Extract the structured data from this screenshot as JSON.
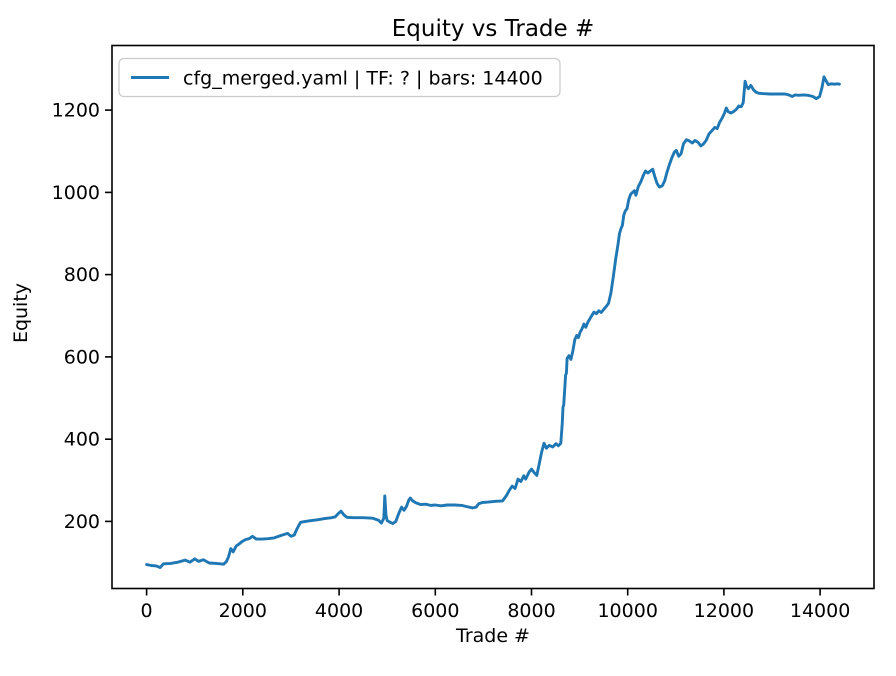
{
  "figure": {
    "background": "#ffffff",
    "text_color": "#000000",
    "legend_border_color": "#cccccc"
  },
  "chart_data": {
    "type": "line",
    "title": "Equity vs Trade #",
    "xlabel": "Trade #",
    "ylabel": "Equity",
    "grid": false,
    "xlim": [
      -720,
      15120
    ],
    "ylim": [
      37,
      1357
    ],
    "x_ticks": [
      0,
      2000,
      4000,
      6000,
      8000,
      10000,
      12000,
      14000
    ],
    "y_ticks": [
      200,
      400,
      600,
      800,
      1000,
      1200
    ],
    "legend": {
      "position": "upper left",
      "entries": [
        {
          "label": "cfg_merged.yaml | TF: ? | bars: 14400",
          "color": "#1f77b4"
        }
      ]
    },
    "series": [
      {
        "name": "cfg_merged.yaml | TF: ? | bars: 14400",
        "color": "#1f77b4",
        "points": [
          [
            0,
            95
          ],
          [
            100,
            93
          ],
          [
            200,
            92
          ],
          [
            280,
            88
          ],
          [
            350,
            97
          ],
          [
            500,
            98
          ],
          [
            650,
            101
          ],
          [
            800,
            106
          ],
          [
            900,
            101
          ],
          [
            1000,
            109
          ],
          [
            1080,
            103
          ],
          [
            1180,
            107
          ],
          [
            1300,
            99
          ],
          [
            1450,
            98
          ],
          [
            1600,
            96
          ],
          [
            1660,
            103
          ],
          [
            1700,
            113
          ],
          [
            1750,
            134
          ],
          [
            1800,
            126
          ],
          [
            1860,
            140
          ],
          [
            1920,
            145
          ],
          [
            1980,
            151
          ],
          [
            2060,
            156
          ],
          [
            2130,
            158
          ],
          [
            2200,
            164
          ],
          [
            2280,
            157
          ],
          [
            2400,
            157
          ],
          [
            2520,
            158
          ],
          [
            2650,
            160
          ],
          [
            2800,
            166
          ],
          [
            2930,
            171
          ],
          [
            3000,
            164
          ],
          [
            3070,
            167
          ],
          [
            3110,
            178
          ],
          [
            3160,
            190
          ],
          [
            3200,
            198
          ],
          [
            3300,
            200
          ],
          [
            3420,
            202
          ],
          [
            3550,
            204
          ],
          [
            3700,
            207
          ],
          [
            3850,
            209
          ],
          [
            3920,
            211
          ],
          [
            3990,
            220
          ],
          [
            4040,
            225
          ],
          [
            4100,
            216
          ],
          [
            4160,
            210
          ],
          [
            4300,
            209
          ],
          [
            4500,
            209
          ],
          [
            4700,
            208
          ],
          [
            4820,
            203
          ],
          [
            4880,
            196
          ],
          [
            4930,
            208
          ],
          [
            4950,
            262
          ],
          [
            4975,
            215
          ],
          [
            5000,
            202
          ],
          [
            5060,
            198
          ],
          [
            5120,
            195
          ],
          [
            5180,
            200
          ],
          [
            5250,
            222
          ],
          [
            5300,
            235
          ],
          [
            5350,
            227
          ],
          [
            5400,
            236
          ],
          [
            5450,
            252
          ],
          [
            5480,
            257
          ],
          [
            5530,
            250
          ],
          [
            5600,
            245
          ],
          [
            5700,
            241
          ],
          [
            5800,
            242
          ],
          [
            5900,
            239
          ],
          [
            6000,
            240
          ],
          [
            6120,
            238
          ],
          [
            6250,
            240
          ],
          [
            6400,
            240
          ],
          [
            6550,
            239
          ],
          [
            6700,
            235
          ],
          [
            6780,
            233
          ],
          [
            6850,
            235
          ],
          [
            6900,
            243
          ],
          [
            6980,
            246
          ],
          [
            7100,
            247
          ],
          [
            7250,
            249
          ],
          [
            7400,
            250
          ],
          [
            7480,
            263
          ],
          [
            7540,
            276
          ],
          [
            7600,
            286
          ],
          [
            7660,
            280
          ],
          [
            7720,
            303
          ],
          [
            7780,
            297
          ],
          [
            7840,
            311
          ],
          [
            7880,
            303
          ],
          [
            7950,
            320
          ],
          [
            8000,
            327
          ],
          [
            8060,
            318
          ],
          [
            8110,
            312
          ],
          [
            8160,
            340
          ],
          [
            8210,
            368
          ],
          [
            8260,
            390
          ],
          [
            8310,
            378
          ],
          [
            8370,
            385
          ],
          [
            8440,
            381
          ],
          [
            8510,
            389
          ],
          [
            8560,
            384
          ],
          [
            8610,
            390
          ],
          [
            8640,
            440
          ],
          [
            8655,
            478
          ],
          [
            8670,
            483
          ],
          [
            8690,
            520
          ],
          [
            8710,
            556
          ],
          [
            8725,
            560
          ],
          [
            8740,
            596
          ],
          [
            8780,
            603
          ],
          [
            8820,
            594
          ],
          [
            8860,
            615
          ],
          [
            8900,
            642
          ],
          [
            8940,
            652
          ],
          [
            8975,
            647
          ],
          [
            9010,
            660
          ],
          [
            9050,
            668
          ],
          [
            9090,
            680
          ],
          [
            9130,
            672
          ],
          [
            9170,
            684
          ],
          [
            9210,
            692
          ],
          [
            9250,
            700
          ],
          [
            9300,
            709
          ],
          [
            9350,
            705
          ],
          [
            9400,
            712
          ],
          [
            9450,
            708
          ],
          [
            9500,
            715
          ],
          [
            9550,
            722
          ],
          [
            9600,
            730
          ],
          [
            9650,
            755
          ],
          [
            9700,
            795
          ],
          [
            9750,
            838
          ],
          [
            9800,
            875
          ],
          [
            9830,
            900
          ],
          [
            9860,
            912
          ],
          [
            9890,
            920
          ],
          [
            9920,
            945
          ],
          [
            9950,
            955
          ],
          [
            9985,
            960
          ],
          [
            10020,
            982
          ],
          [
            10060,
            995
          ],
          [
            10100,
            1000
          ],
          [
            10140,
            1004
          ],
          [
            10170,
            993
          ],
          [
            10220,
            1014
          ],
          [
            10270,
            1025
          ],
          [
            10320,
            1040
          ],
          [
            10370,
            1052
          ],
          [
            10420,
            1047
          ],
          [
            10470,
            1052
          ],
          [
            10520,
            1056
          ],
          [
            10560,
            1040
          ],
          [
            10610,
            1022
          ],
          [
            10660,
            1013
          ],
          [
            10720,
            1016
          ],
          [
            10770,
            1028
          ],
          [
            10820,
            1050
          ],
          [
            10870,
            1068
          ],
          [
            10920,
            1085
          ],
          [
            10970,
            1098
          ],
          [
            11010,
            1102
          ],
          [
            11060,
            1088
          ],
          [
            11110,
            1094
          ],
          [
            11160,
            1118
          ],
          [
            11220,
            1128
          ],
          [
            11280,
            1125
          ],
          [
            11340,
            1120
          ],
          [
            11400,
            1126
          ],
          [
            11460,
            1122
          ],
          [
            11520,
            1113
          ],
          [
            11570,
            1117
          ],
          [
            11630,
            1126
          ],
          [
            11690,
            1142
          ],
          [
            11750,
            1150
          ],
          [
            11810,
            1158
          ],
          [
            11860,
            1155
          ],
          [
            11910,
            1170
          ],
          [
            11960,
            1180
          ],
          [
            12010,
            1192
          ],
          [
            12050,
            1205
          ],
          [
            12090,
            1196
          ],
          [
            12150,
            1193
          ],
          [
            12210,
            1197
          ],
          [
            12260,
            1202
          ],
          [
            12310,
            1210
          ],
          [
            12360,
            1208
          ],
          [
            12400,
            1218
          ],
          [
            12440,
            1270
          ],
          [
            12470,
            1258
          ],
          [
            12510,
            1252
          ],
          [
            12560,
            1260
          ],
          [
            12610,
            1250
          ],
          [
            12660,
            1244
          ],
          [
            12720,
            1241
          ],
          [
            12800,
            1240
          ],
          [
            12950,
            1239
          ],
          [
            13100,
            1239
          ],
          [
            13270,
            1239
          ],
          [
            13350,
            1237
          ],
          [
            13420,
            1233
          ],
          [
            13480,
            1237
          ],
          [
            13560,
            1236
          ],
          [
            13650,
            1237
          ],
          [
            13750,
            1236
          ],
          [
            13850,
            1233
          ],
          [
            13920,
            1228
          ],
          [
            13990,
            1233
          ],
          [
            14040,
            1255
          ],
          [
            14080,
            1281
          ],
          [
            14120,
            1272
          ],
          [
            14170,
            1262
          ],
          [
            14230,
            1264
          ],
          [
            14300,
            1263
          ],
          [
            14360,
            1264
          ],
          [
            14400,
            1263
          ]
        ]
      }
    ]
  }
}
